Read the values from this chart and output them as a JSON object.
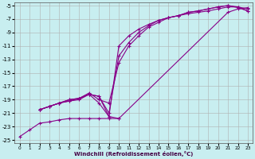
{
  "xlabel": "Windchill (Refroidissement éolien,°C)",
  "background_color": "#c8eef0",
  "grid_color": "#b0b0b0",
  "line_color": "#880088",
  "xlim": [
    -0.5,
    23.5
  ],
  "ylim": [
    -25.5,
    -4.5
  ],
  "xticks": [
    0,
    1,
    2,
    3,
    4,
    5,
    6,
    7,
    8,
    9,
    10,
    11,
    12,
    13,
    14,
    15,
    16,
    17,
    18,
    19,
    20,
    21,
    22,
    23
  ],
  "yticks": [
    -25,
    -23,
    -21,
    -19,
    -17,
    -15,
    -13,
    -11,
    -9,
    -7,
    -5
  ],
  "series": [
    {
      "x": [
        0,
        1,
        2,
        3,
        4,
        5,
        6,
        7,
        8,
        9,
        10,
        21,
        22,
        23
      ],
      "y": [
        -24.5,
        -23.5,
        -22.5,
        -22.3,
        -22.0,
        -21.8,
        -21.8,
        -21.8,
        -21.8,
        -21.8,
        -21.8,
        -6.0,
        -5.5,
        -5.3
      ]
    },
    {
      "x": [
        2,
        3,
        4,
        5,
        6,
        7,
        8,
        9,
        10,
        11,
        12,
        13,
        14,
        15,
        16,
        17,
        18,
        19,
        20,
        21,
        22,
        23
      ],
      "y": [
        -20.5,
        -20.0,
        -19.5,
        -19.2,
        -19.0,
        -18.2,
        -18.5,
        -21.5,
        -11.0,
        -9.5,
        -8.5,
        -7.8,
        -7.2,
        -6.8,
        -6.5,
        -6.2,
        -6.0,
        -5.8,
        -5.5,
        -5.2,
        -5.2,
        -5.5
      ]
    },
    {
      "x": [
        2,
        3,
        4,
        5,
        6,
        7,
        8,
        9,
        10,
        11,
        12,
        13,
        14,
        15,
        16,
        17,
        18,
        19,
        20,
        21,
        22,
        23
      ],
      "y": [
        -20.5,
        -20.0,
        -19.5,
        -19.0,
        -18.8,
        -18.2,
        -18.5,
        -21.0,
        -12.5,
        -10.5,
        -9.0,
        -8.0,
        -7.2,
        -6.8,
        -6.5,
        -6.0,
        -5.8,
        -5.5,
        -5.2,
        -5.0,
        -5.3,
        -5.8
      ]
    },
    {
      "x": [
        2,
        3,
        4,
        5,
        6,
        7,
        8,
        9,
        10,
        11,
        12,
        13,
        14,
        15,
        16,
        17,
        18,
        19,
        20,
        21,
        22,
        23
      ],
      "y": [
        -20.5,
        -20.0,
        -19.5,
        -19.0,
        -18.8,
        -18.0,
        -19.0,
        -19.5,
        -13.5,
        -11.0,
        -9.5,
        -8.2,
        -7.5,
        -6.8,
        -6.5,
        -6.0,
        -5.8,
        -5.5,
        -5.2,
        -5.0,
        -5.2,
        -5.8
      ]
    },
    {
      "x": [
        2,
        3,
        4,
        5,
        6,
        7,
        8,
        9,
        10
      ],
      "y": [
        -20.5,
        -20.0,
        -19.5,
        -19.2,
        -18.8,
        -18.2,
        -19.5,
        -21.5,
        -21.8
      ]
    }
  ]
}
